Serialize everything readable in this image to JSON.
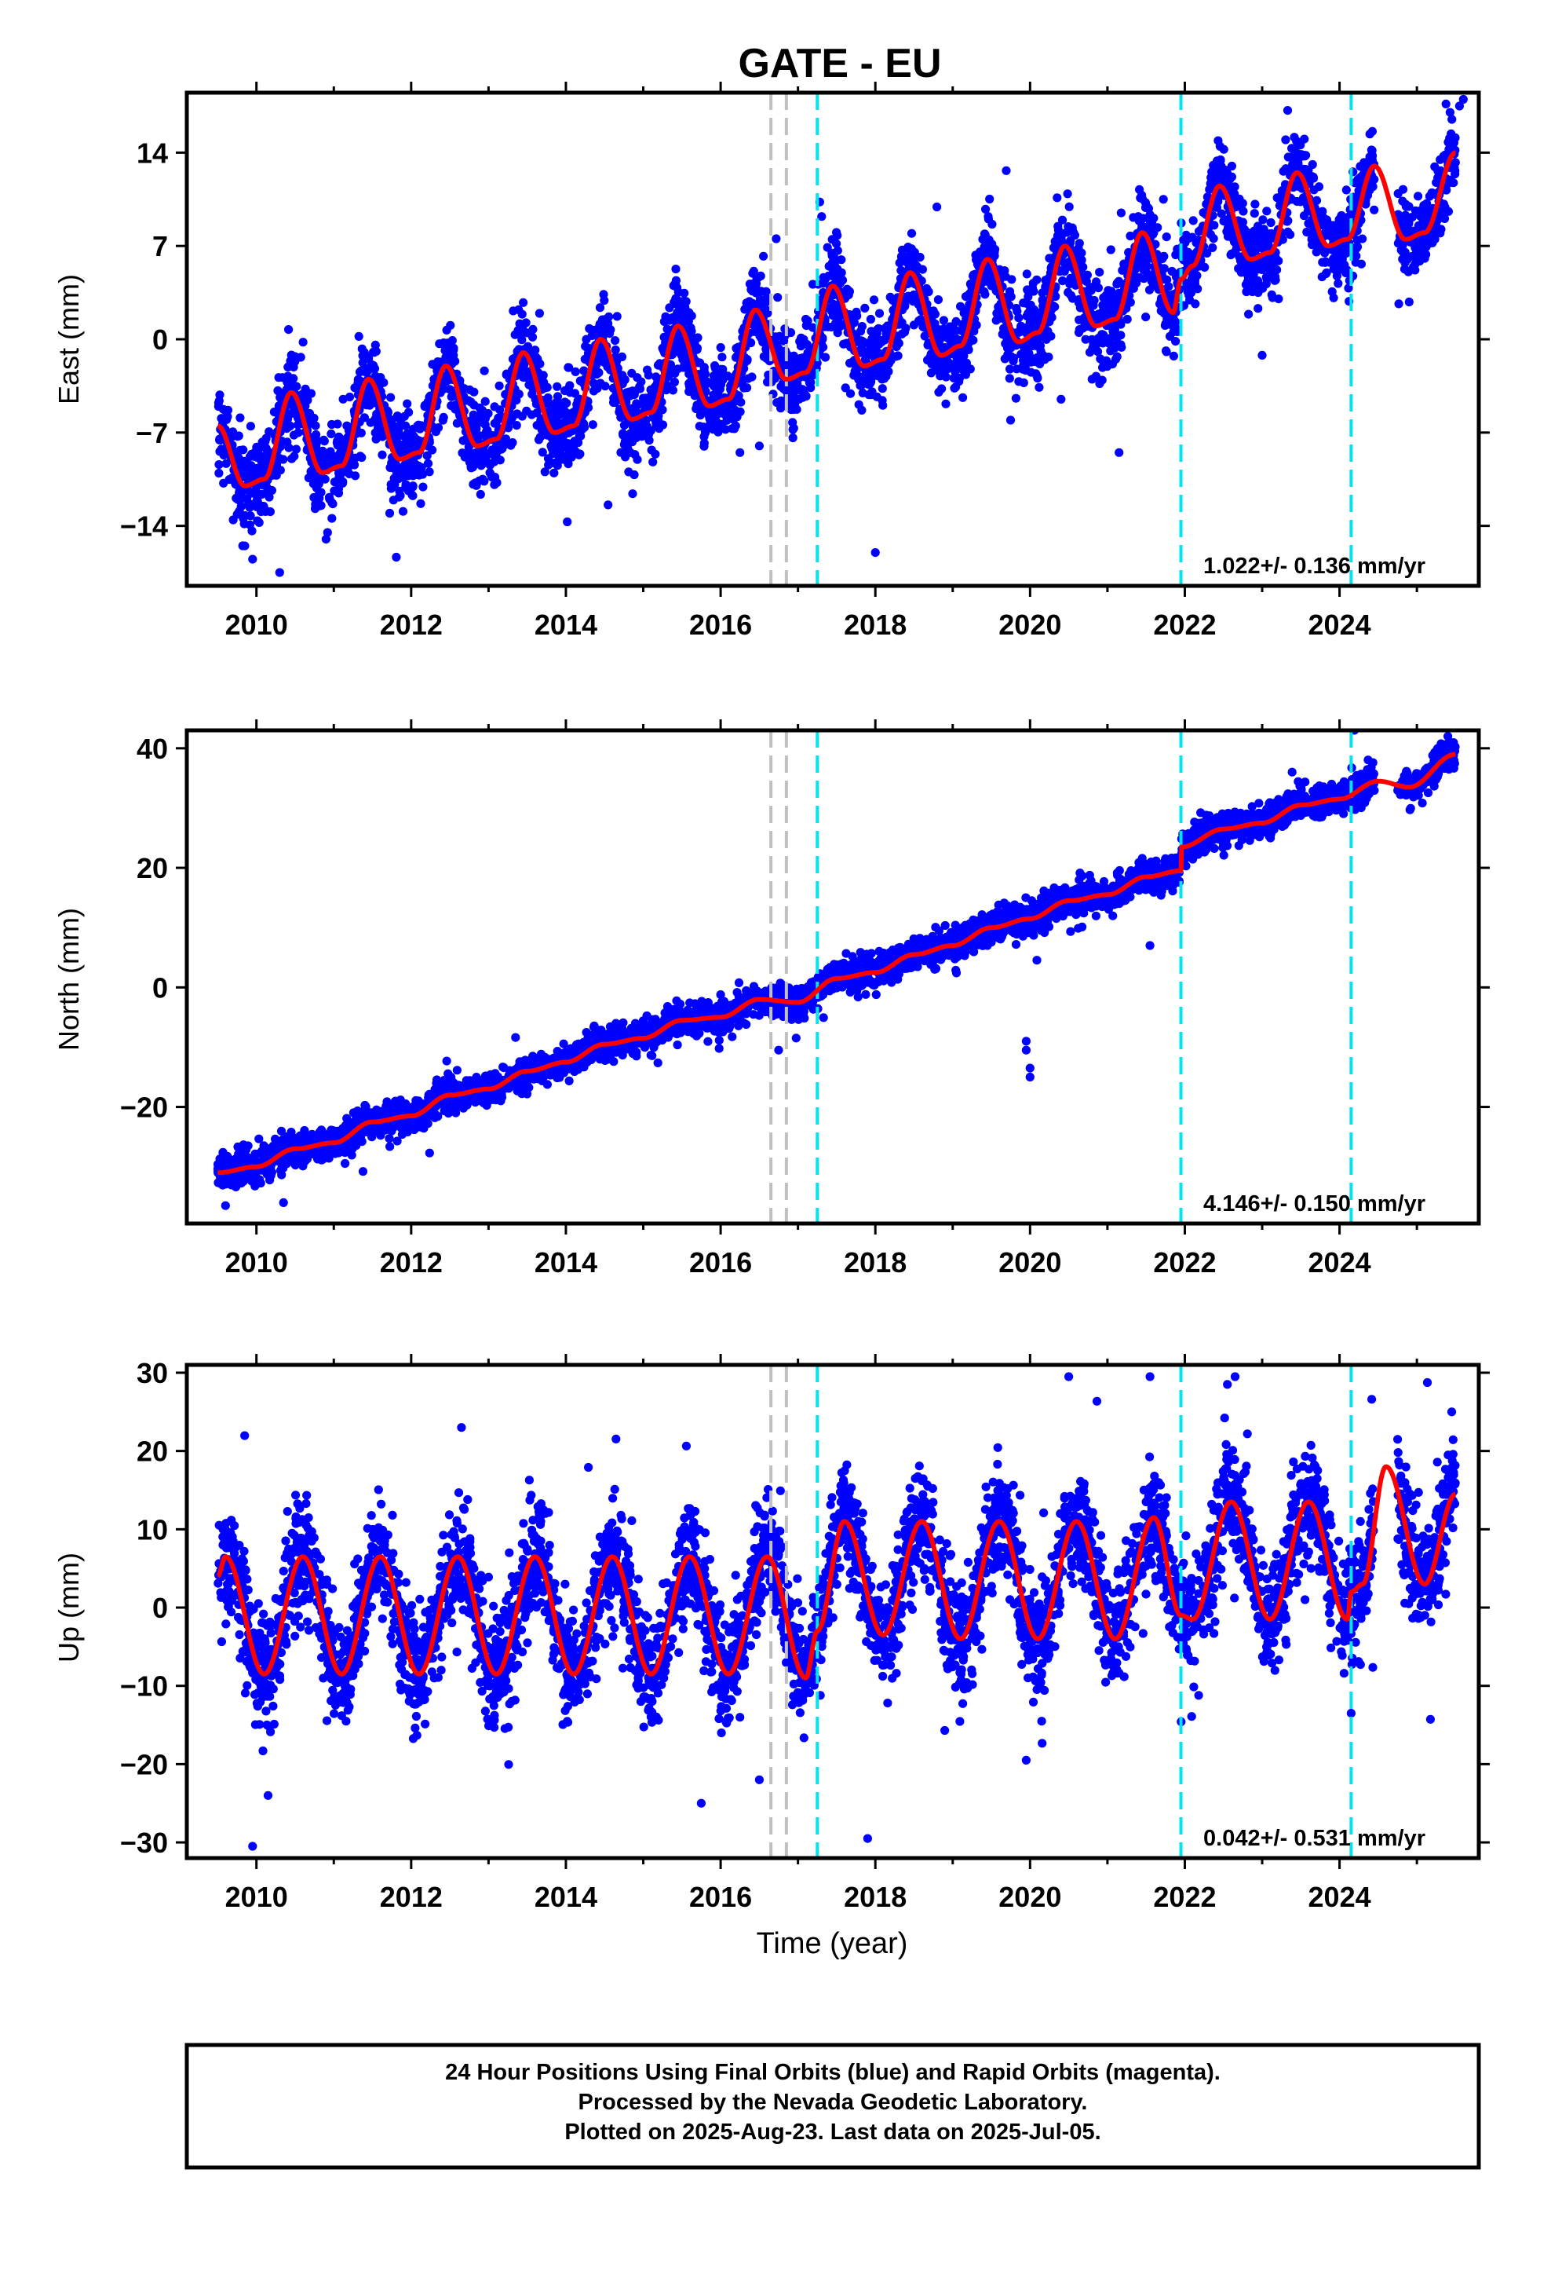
{
  "title": "GATE - EU",
  "xlabel": "Time (year)",
  "footer": [
    "24 Hour Positions Using Final Orbits (blue) and Rapid Orbits (magenta).",
    "Processed by the Nevada Geodetic Laboratory.",
    "Plotted on 2025-Aug-23. Last data on 2025-Jul-05."
  ],
  "colors": {
    "points": "#0000ff",
    "model": "#ff0000",
    "equipment_change": "#00e5ee",
    "other_event": "#c0c0c0",
    "frame": "#000000"
  },
  "chart_data": [
    {
      "type": "scatter",
      "ylabel": "East (mm)",
      "rate_label": "1.022+/- 0.136 mm/yr",
      "xlim": [
        2009.1,
        2025.8
      ],
      "ylim": [
        -18.5,
        18.5
      ],
      "x_ticks": [
        2010,
        2012,
        2014,
        2016,
        2018,
        2020,
        2022,
        2024
      ],
      "x_tick_labels": [
        "2010",
        "2012",
        "2014",
        "2016",
        "2018",
        "2020",
        "2022",
        "2024"
      ],
      "y_ticks": [
        -14,
        -7,
        0,
        7,
        14
      ],
      "y_tick_labels": [
        "−14",
        "−7",
        "0",
        "7",
        "14"
      ],
      "events_gray": [
        2016.65,
        2016.85
      ],
      "events_cyan": [
        2017.25,
        2021.95,
        2024.15
      ],
      "model": {
        "x": [
          2009.5,
          2009.85,
          2010.1,
          2010.45,
          2010.85,
          2011.1,
          2011.45,
          2011.85,
          2012.1,
          2012.45,
          2012.85,
          2013.1,
          2013.45,
          2013.85,
          2014.1,
          2014.45,
          2014.85,
          2015.1,
          2015.45,
          2015.85,
          2016.1,
          2016.45,
          2016.85,
          2017.1,
          2017.45,
          2017.85,
          2018.1,
          2018.45,
          2018.85,
          2019.1,
          2019.45,
          2019.85,
          2020.1,
          2020.45,
          2020.85,
          2021.1,
          2021.45,
          2021.85,
          2021.95,
          2022.1,
          2022.45,
          2022.85,
          2023.1,
          2023.45,
          2023.85,
          2024.1,
          2024.45,
          2024.85,
          2025.1,
          2025.5
        ],
        "y": [
          -6.5,
          -11,
          -10.5,
          -4,
          -10,
          -9.5,
          -3,
          -9,
          -8.5,
          -2,
          -8,
          -7.5,
          -1,
          -7,
          -6.5,
          0,
          -6,
          -5.5,
          1,
          -5,
          -4.5,
          2.2,
          -3,
          -2.5,
          4,
          -2,
          -1.5,
          5,
          -1.2,
          -0.5,
          6,
          -0.2,
          0.5,
          7,
          1,
          1.5,
          8,
          2,
          4.5,
          5.5,
          11.5,
          6,
          6.5,
          12.5,
          7,
          7.5,
          13,
          7.5,
          8,
          14
        ]
      },
      "points": {
        "n": 4600,
        "seed": 11,
        "noise_sd": 1.6,
        "outliers": [
          [
            2009.85,
            -15.5
          ],
          [
            2009.95,
            -16.5
          ],
          [
            2010.3,
            -17.5
          ],
          [
            2010.9,
            -15
          ],
          [
            2016.25,
            -8.5
          ],
          [
            2016.5,
            -8
          ],
          [
            2018.0,
            -16
          ],
          [
            2021.15,
            -8.5
          ],
          [
            2023.0,
            -1.2
          ],
          [
            2020.4,
            -4.5
          ],
          [
            2024.9,
            2.8
          ],
          [
            2025.55,
            17.5
          ],
          [
            2025.6,
            18
          ]
        ]
      }
    },
    {
      "type": "scatter",
      "ylabel": "North (mm)",
      "rate_label": "4.146+/- 0.150 mm/yr",
      "xlim": [
        2009.1,
        2025.8
      ],
      "ylim": [
        -39.5,
        43
      ],
      "x_ticks": [
        2010,
        2012,
        2014,
        2016,
        2018,
        2020,
        2022,
        2024
      ],
      "x_tick_labels": [
        "2010",
        "2012",
        "2014",
        "2016",
        "2018",
        "2020",
        "2022",
        "2024"
      ],
      "y_ticks": [
        -20,
        0,
        20,
        40
      ],
      "y_tick_labels": [
        "−20",
        "0",
        "20",
        "40"
      ],
      "events_gray": [
        2016.65,
        2016.85
      ],
      "events_cyan": [
        2017.25,
        2021.95,
        2024.15
      ],
      "model": {
        "x": [
          2009.5,
          2010.0,
          2010.5,
          2011.0,
          2011.5,
          2012.0,
          2012.5,
          2013.0,
          2013.5,
          2014.0,
          2014.5,
          2015.0,
          2015.5,
          2016.0,
          2016.5,
          2017.0,
          2017.5,
          2018.0,
          2018.5,
          2019.0,
          2019.5,
          2020.0,
          2020.5,
          2021.0,
          2021.5,
          2021.95,
          2021.96,
          2022.5,
          2023.0,
          2023.5,
          2024.0,
          2024.5,
          2024.9,
          2025.5
        ],
        "y": [
          -31,
          -30,
          -27,
          -26,
          -22.5,
          -21.5,
          -18,
          -17,
          -14,
          -12.5,
          -9.5,
          -8.5,
          -5.5,
          -5,
          -2,
          -2.5,
          1.5,
          2.5,
          5.5,
          7,
          10,
          11.5,
          14.5,
          15.5,
          18.5,
          19.5,
          23.5,
          26.5,
          27.5,
          30.5,
          31.5,
          34.5,
          33.5,
          39
        ]
      },
      "points": {
        "n": 4600,
        "seed": 23,
        "noise_sd": 1.3,
        "outliers": [
          [
            2009.6,
            -36.5
          ],
          [
            2010.35,
            -36
          ],
          [
            2016.75,
            -10.5
          ],
          [
            2019.95,
            -9
          ],
          [
            2019.95,
            -10.5
          ],
          [
            2020.0,
            -13.5
          ],
          [
            2020.0,
            -15
          ],
          [
            2021.55,
            7
          ],
          [
            2025.4,
            42
          ]
        ]
      }
    },
    {
      "type": "scatter",
      "ylabel": "Up (mm)",
      "rate_label": "0.042+/- 0.531 mm/yr",
      "xlim": [
        2009.1,
        2025.8
      ],
      "ylim": [
        -32,
        31
      ],
      "x_ticks": [
        2010,
        2012,
        2014,
        2016,
        2018,
        2020,
        2022,
        2024
      ],
      "x_tick_labels": [
        "2010",
        "2012",
        "2014",
        "2016",
        "2018",
        "2020",
        "2022",
        "2024"
      ],
      "y_ticks": [
        -30,
        -20,
        -10,
        0,
        10,
        20,
        30
      ],
      "y_tick_labels": [
        "−30",
        "−20",
        "−10",
        "0",
        "10",
        "20",
        "30"
      ],
      "events_gray": [
        2016.65,
        2016.85
      ],
      "events_cyan": [
        2017.25,
        2021.95,
        2024.15
      ],
      "model": {
        "x": [
          2009.5,
          2009.6,
          2010.1,
          2010.6,
          2011.1,
          2011.6,
          2012.1,
          2012.6,
          2013.1,
          2013.6,
          2014.1,
          2014.6,
          2015.1,
          2015.6,
          2016.1,
          2016.6,
          2017.1,
          2017.25,
          2017.6,
          2018.1,
          2018.6,
          2019.1,
          2019.6,
          2020.1,
          2020.6,
          2021.1,
          2021.6,
          2021.95,
          2022.1,
          2022.6,
          2023.1,
          2023.6,
          2024.1,
          2024.15,
          2024.3,
          2024.6,
          2025.1,
          2025.5
        ],
        "y": [
          4,
          6.5,
          -8.5,
          6.5,
          -8.5,
          6.5,
          -8.5,
          6.5,
          -8.5,
          6.5,
          -8.5,
          6.5,
          -8.5,
          6.5,
          -8.5,
          6.5,
          -9,
          -3,
          11,
          -3.5,
          11,
          -4,
          11,
          -4,
          11,
          -4,
          11.5,
          -1,
          -1.5,
          13.5,
          -1.5,
          13.5,
          -1.5,
          2,
          3,
          18,
          3,
          14.5
        ]
      },
      "points": {
        "n": 4600,
        "seed": 37,
        "noise_sd": 3.6,
        "outliers": [
          [
            2009.95,
            -30.5
          ],
          [
            2010.15,
            -24
          ],
          [
            2012.65,
            23
          ],
          [
            2015.75,
            -25
          ],
          [
            2016.5,
            -22
          ],
          [
            2017.9,
            -29.5
          ],
          [
            2019.95,
            -19.5
          ],
          [
            2020.5,
            29.5
          ],
          [
            2021.55,
            29.5
          ],
          [
            2022.55,
            28.5
          ],
          [
            2022.65,
            29.5
          ],
          [
            2024.15,
            -13.5
          ],
          [
            2025.45,
            25
          ]
        ]
      }
    }
  ]
}
